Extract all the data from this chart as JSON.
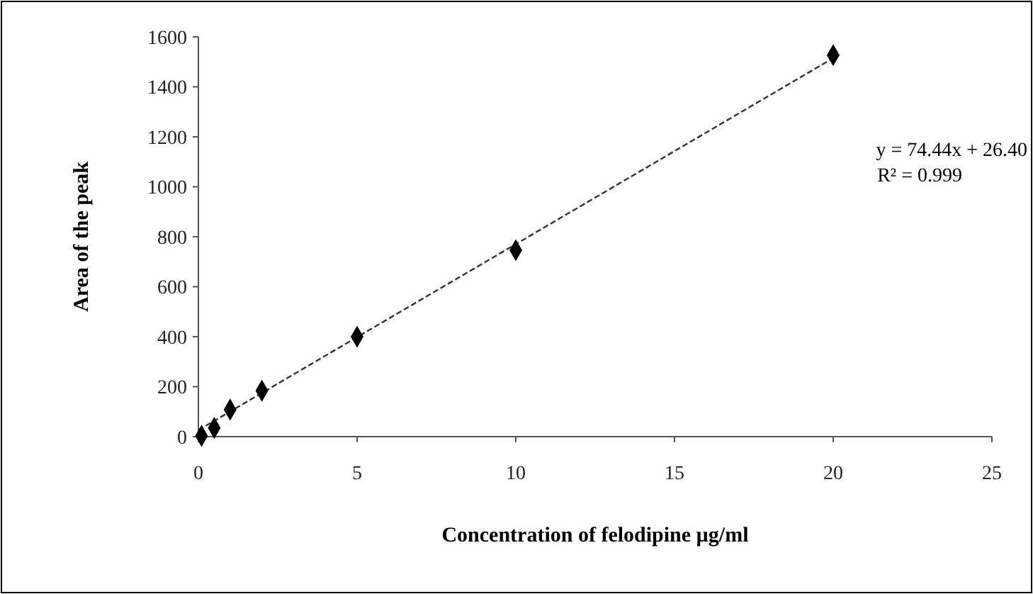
{
  "chart_data": {
    "type": "scatter",
    "xlabel": "Concentration of felodipine µg/ml",
    "ylabel": "Area of the peak",
    "xlim": [
      0,
      25
    ],
    "xticks": [
      0,
      5,
      10,
      15,
      20,
      25
    ],
    "ylim": [
      0,
      1600
    ],
    "yticks": [
      0,
      200,
      400,
      600,
      800,
      1000,
      1200,
      1400,
      1600
    ],
    "grid": false,
    "series": [
      {
        "color": "#000000",
        "marker": "diamond",
        "x": [
          0.1,
          0.5,
          1,
          2,
          5,
          10,
          20
        ],
        "values": [
          3,
          35,
          108,
          184,
          400,
          746,
          1527
        ]
      },
      {
        "type": "line",
        "color": "#333333",
        "line_style": "dashed",
        "marker": "none",
        "x": [
          0,
          20
        ],
        "values": [
          26,
          1515
        ]
      }
    ],
    "annotations": [
      "y = 74.44x + 26.40",
      "R² = 0.999"
    ]
  }
}
